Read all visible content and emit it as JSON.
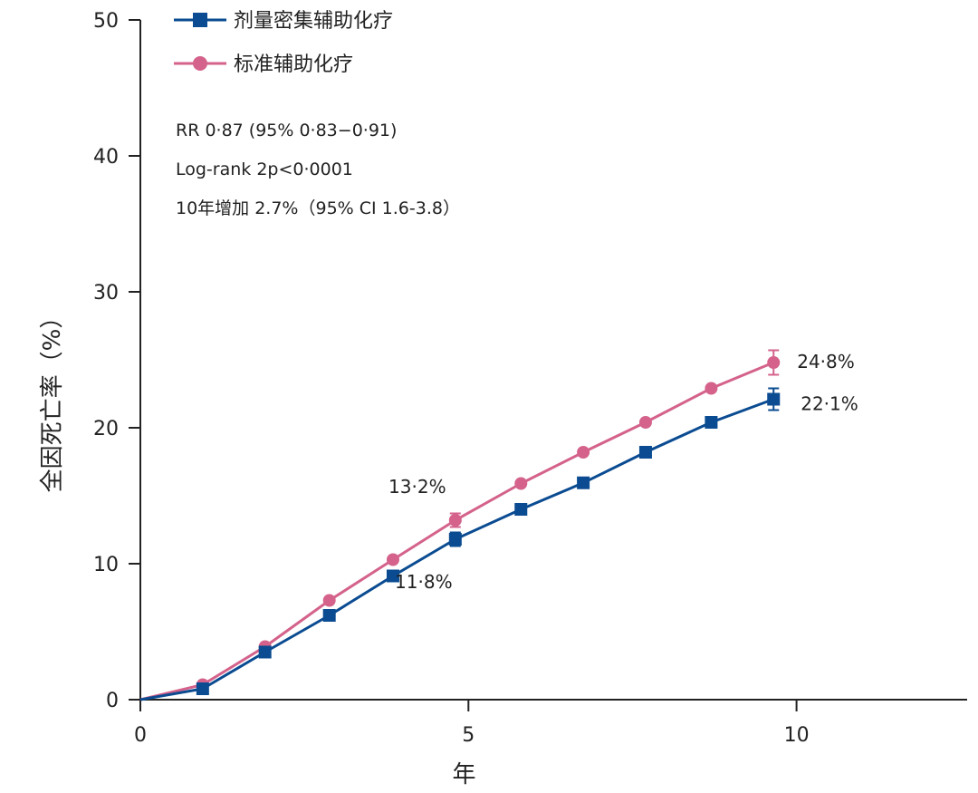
{
  "chart_data": {
    "type": "line",
    "xlabel": "年",
    "ylabel": "全因死亡率（%）",
    "xlim": [
      0,
      12.6
    ],
    "ylim": [
      0,
      50
    ],
    "xticks": [
      0,
      5,
      10
    ],
    "yticks": [
      0,
      10,
      20,
      30,
      40,
      50
    ],
    "grid": false,
    "legend_position": "top-left",
    "annotations": [
      "RR 0·87 (95% 0·83−0·91)",
      "Log-rank 2p<0·0001",
      "10年增加 2.7%（95% CI 1.6-3.8）"
    ],
    "series": [
      {
        "name": "剂量密集辅助化疗",
        "color": "#0a4b91",
        "marker": "square",
        "x": [
          0,
          0.95,
          1.9,
          2.88,
          3.85,
          4.8,
          5.8,
          6.75,
          7.7,
          8.7,
          9.65
        ],
        "y": [
          0,
          0.8,
          3.5,
          6.2,
          9.1,
          11.8,
          14.0,
          15.95,
          18.2,
          20.4,
          22.1
        ],
        "error_bars": [
          {
            "x": 4.8,
            "low": 11.3,
            "high": 12.3
          },
          {
            "x": 9.65,
            "low": 21.3,
            "high": 22.9
          }
        ],
        "value_labels": [
          {
            "x": 4.8,
            "y": 11.8,
            "text": "11·8%"
          },
          {
            "x": 9.65,
            "y": 22.1,
            "text": "22·1%"
          }
        ]
      },
      {
        "name": "标准辅助化疗",
        "color": "#d4628b",
        "marker": "circle",
        "x": [
          0,
          0.95,
          1.9,
          2.88,
          3.85,
          4.8,
          5.8,
          6.75,
          7.7,
          8.7,
          9.65
        ],
        "y": [
          0,
          1.1,
          3.9,
          7.3,
          10.3,
          13.2,
          15.9,
          18.2,
          20.4,
          22.9,
          24.8
        ],
        "error_bars": [
          {
            "x": 4.8,
            "low": 12.7,
            "high": 13.7
          },
          {
            "x": 9.65,
            "low": 23.9,
            "high": 25.7
          }
        ],
        "value_labels": [
          {
            "x": 4.8,
            "y": 13.2,
            "text": "13·2%"
          },
          {
            "x": 9.65,
            "y": 24.8,
            "text": "24·8%"
          }
        ]
      }
    ]
  }
}
